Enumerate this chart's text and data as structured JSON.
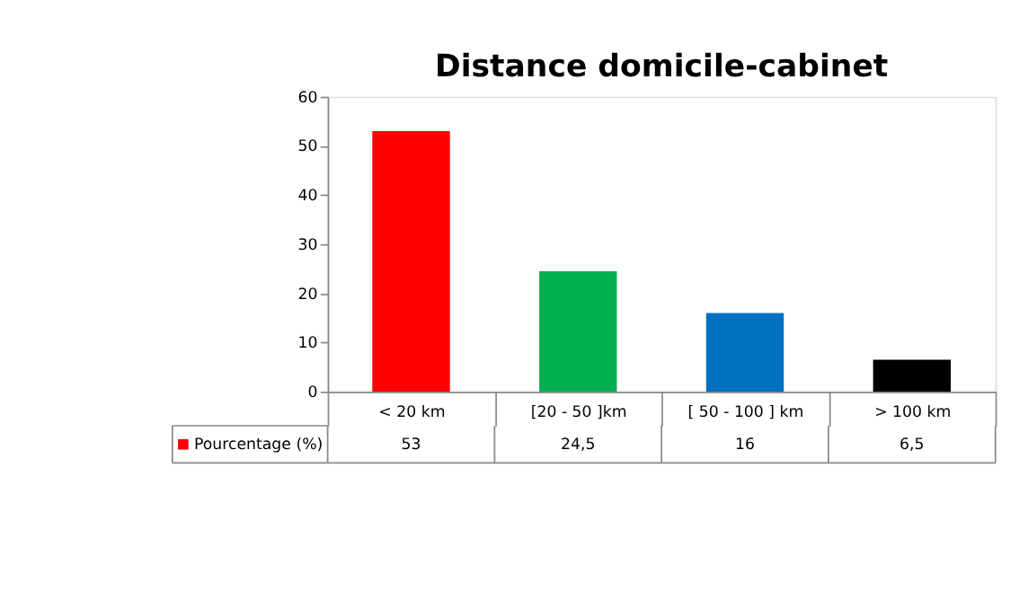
{
  "chart_data": {
    "type": "bar",
    "title": "Distance domicile-cabinet",
    "categories": [
      "< 20 km",
      "[20 - 50 ]km",
      "[ 50 - 100 ] km",
      "> 100 km"
    ],
    "series": [
      {
        "name": "Pourcentage (%)",
        "color": "#ff0000",
        "colors": [
          "#ff0000",
          "#00b050",
          "#0070c0",
          "#000000"
        ],
        "values": [
          53,
          24.5,
          16,
          6.5
        ],
        "value_labels": [
          "53",
          "24,5",
          "16",
          "6,5"
        ]
      }
    ],
    "ylim": [
      0,
      60
    ],
    "yticks": [
      0,
      10,
      20,
      30,
      40,
      50,
      60
    ],
    "grid": false,
    "legend": "bottom"
  }
}
